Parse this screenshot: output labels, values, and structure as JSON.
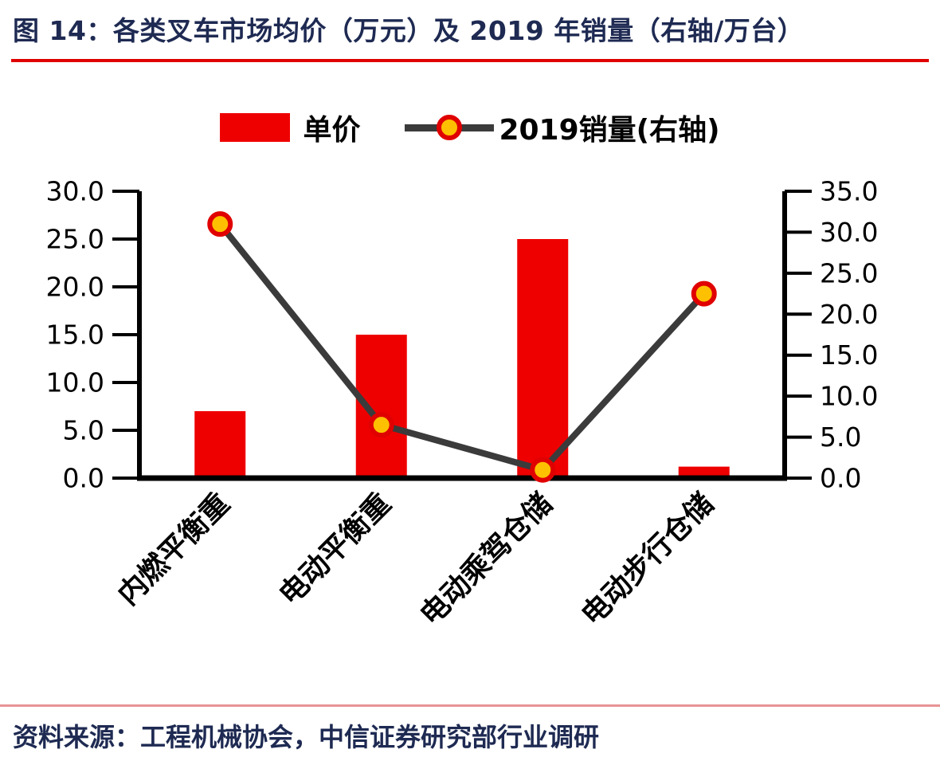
{
  "header": {
    "title": "图 14：各类叉车市场均价（万元）及 2019 年销量（右轴/万台）"
  },
  "legend": {
    "bar_label": "单价",
    "line_label": "2019销量(右轴)"
  },
  "footer": {
    "source": "资料来源：工程机械协会，中信证券研究部行业调研"
  },
  "colors": {
    "bar": "#ee0000",
    "line": "#3b3b3b",
    "marker_fill": "#ffc000",
    "marker_stroke": "#e00000",
    "axis": "#000000",
    "title_text": "#1e2a52",
    "rule_top": "#e00000",
    "rule_bottom": "#e89494"
  },
  "chart_data": {
    "type": "combo",
    "title": "各类叉车市场均价（万元）及2019年销量（右轴/万台）",
    "categories": [
      "内燃平衡重",
      "电动平衡重",
      "电动乘驾仓储",
      "电动步行仓储"
    ],
    "series": [
      {
        "name": "单价",
        "type": "bar",
        "axis": "left",
        "values": [
          7.0,
          15.0,
          25.0,
          1.2
        ]
      },
      {
        "name": "2019销量(右轴)",
        "type": "line",
        "axis": "right",
        "values": [
          31.0,
          6.5,
          1.0,
          22.5
        ]
      }
    ],
    "left_axis": {
      "min": 0,
      "max": 30,
      "step": 5,
      "tick_labels": [
        "0.0",
        "5.0",
        "10.0",
        "15.0",
        "20.0",
        "25.0",
        "30.0"
      ]
    },
    "right_axis": {
      "min": 0,
      "max": 35,
      "step": 5,
      "tick_labels": [
        "0.0",
        "5.0",
        "10.0",
        "15.0",
        "20.0",
        "25.0",
        "30.0",
        "35.0"
      ]
    },
    "grid": false,
    "legend_position": "top"
  }
}
